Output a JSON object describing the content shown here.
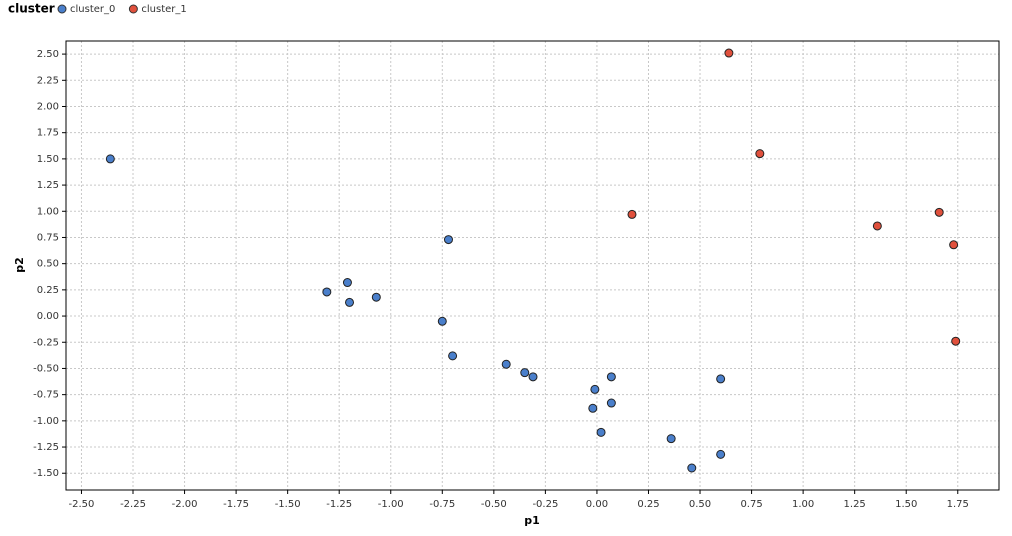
{
  "chart_data": {
    "type": "scatter",
    "legend_title": "cluster",
    "x_label": "p1",
    "y_label": "p2",
    "grid": true,
    "legend": "top-left",
    "xlim": [
      -2.575,
      1.95
    ],
    "ylim": [
      -1.66,
      2.625
    ],
    "xticks": [
      {
        "value": -2.5,
        "label": "-2.50"
      },
      {
        "value": -2.25,
        "label": "-2.25"
      },
      {
        "value": -2,
        "label": "-2.00"
      },
      {
        "value": -1.75,
        "label": "-1.75"
      },
      {
        "value": -1.5,
        "label": "-1.50"
      },
      {
        "value": -1.25,
        "label": "-1.25"
      },
      {
        "value": -1,
        "label": "-1.00"
      },
      {
        "value": -0.75,
        "label": "-0.75"
      },
      {
        "value": -0.5,
        "label": "-0.50"
      },
      {
        "value": -0.25,
        "label": "-0.25"
      },
      {
        "value": 0,
        "label": "0.00"
      },
      {
        "value": 0.25,
        "label": "0.25"
      },
      {
        "value": 0.5,
        "label": "0.50"
      },
      {
        "value": 0.75,
        "label": "0.75"
      },
      {
        "value": 1,
        "label": "1.00"
      },
      {
        "value": 1.25,
        "label": "1.25"
      },
      {
        "value": 1.5,
        "label": "1.50"
      },
      {
        "value": 1.75,
        "label": "1.75"
      }
    ],
    "yticks": [
      {
        "value": 2.5,
        "label": "2.50"
      },
      {
        "value": 2.25,
        "label": "2.25"
      },
      {
        "value": 2,
        "label": "2.00"
      },
      {
        "value": 1.75,
        "label": "1.75"
      },
      {
        "value": 1.5,
        "label": "1.50"
      },
      {
        "value": 1.25,
        "label": "1.25"
      },
      {
        "value": 1,
        "label": "1.00"
      },
      {
        "value": 0.75,
        "label": "0.75"
      },
      {
        "value": 0.5,
        "label": "0.50"
      },
      {
        "value": 0.25,
        "label": "0.25"
      },
      {
        "value": 0,
        "label": "0.00"
      },
      {
        "value": -0.25,
        "label": "-0.25"
      },
      {
        "value": -0.5,
        "label": "-0.50"
      },
      {
        "value": -0.75,
        "label": "-0.75"
      },
      {
        "value": -1,
        "label": "-1.00"
      },
      {
        "value": -1.25,
        "label": "-1.25"
      },
      {
        "value": -1.5,
        "label": "-1.50"
      }
    ],
    "series": [
      {
        "name": "cluster_0",
        "color": "#4a7fcb",
        "x": [
          -2.36,
          -0.72,
          -1.31,
          -1.21,
          -1.2,
          -1.07,
          -0.75,
          -0.7,
          -0.44,
          -0.35,
          -0.31,
          -0.01,
          0.07,
          -0.02,
          0.07,
          0.02,
          0.36,
          0.6,
          0.6,
          0.46
        ],
        "values": [
          1.5,
          0.73,
          0.23,
          0.32,
          0.13,
          0.18,
          -0.05,
          -0.38,
          -0.46,
          -0.54,
          -0.58,
          -0.7,
          -0.58,
          -0.88,
          -0.83,
          -1.11,
          -1.17,
          -0.6,
          -1.32,
          -1.45
        ]
      },
      {
        "name": "cluster_1",
        "color": "#e0503c",
        "x": [
          0.64,
          0.79,
          0.17,
          1.36,
          1.66,
          1.73,
          1.74
        ],
        "values": [
          2.51,
          1.55,
          0.97,
          0.86,
          0.99,
          0.68,
          -0.24
        ]
      }
    ]
  }
}
